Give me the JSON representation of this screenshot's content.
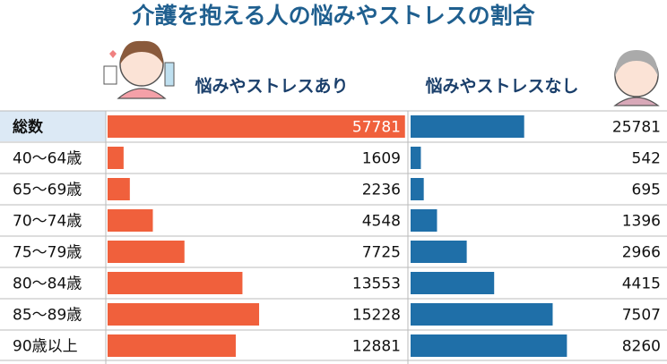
{
  "chart_data": {
    "type": "bar",
    "title": "介護を抱える人の悩みやストレスの割合",
    "categories": [
      "総数",
      "40〜64歳",
      "65〜69歳",
      "70〜74歳",
      "75〜79歳",
      "80〜84歳",
      "85〜89歳",
      "90歳以上"
    ],
    "series": [
      {
        "name": "悩みやストレスあり",
        "color": "#f0603c",
        "xlim": [
          0,
          30000
        ],
        "values": [
          57781,
          1609,
          2236,
          4548,
          7725,
          13553,
          15228,
          12881
        ]
      },
      {
        "name": "悩みやストレスなし",
        "color": "#1f6fa8",
        "xlim": [
          0,
          13500
        ],
        "values": [
          25781,
          542,
          695,
          1396,
          2966,
          4415,
          7507,
          8260
        ]
      }
    ],
    "total_xlim": [
      0,
      58000
    ]
  }
}
